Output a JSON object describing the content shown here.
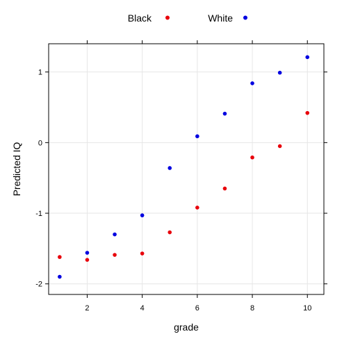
{
  "chart_data": {
    "type": "scatter",
    "xlabel": "grade",
    "ylabel": "Predicted IQ",
    "xlim": [
      0.6,
      10.6
    ],
    "ylim": [
      -2.15,
      1.4
    ],
    "x_ticks": [
      2,
      4,
      6,
      8,
      10
    ],
    "y_ticks": [
      -2,
      -1,
      0,
      1
    ],
    "grid": true,
    "legend_position": "top",
    "series": [
      {
        "name": "Black",
        "color": "#e8000b",
        "points": [
          {
            "x": 1,
            "y": -1.62
          },
          {
            "x": 2,
            "y": -1.66
          },
          {
            "x": 3,
            "y": -1.59
          },
          {
            "x": 4,
            "y": -1.57
          },
          {
            "x": 5,
            "y": -1.27
          },
          {
            "x": 6,
            "y": -0.92
          },
          {
            "x": 7,
            "y": -0.65
          },
          {
            "x": 8,
            "y": -0.21
          },
          {
            "x": 9,
            "y": -0.05
          },
          {
            "x": 10,
            "y": 0.42
          }
        ]
      },
      {
        "name": "White",
        "color": "#0000e0",
        "points": [
          {
            "x": 1,
            "y": -1.9
          },
          {
            "x": 2,
            "y": -1.56
          },
          {
            "x": 3,
            "y": -1.3
          },
          {
            "x": 4,
            "y": -1.03
          },
          {
            "x": 5,
            "y": -0.36
          },
          {
            "x": 6,
            "y": 0.09
          },
          {
            "x": 7,
            "y": 0.41
          },
          {
            "x": 8,
            "y": 0.84
          },
          {
            "x": 9,
            "y": 0.99
          },
          {
            "x": 10,
            "y": 1.21
          }
        ]
      }
    ]
  }
}
